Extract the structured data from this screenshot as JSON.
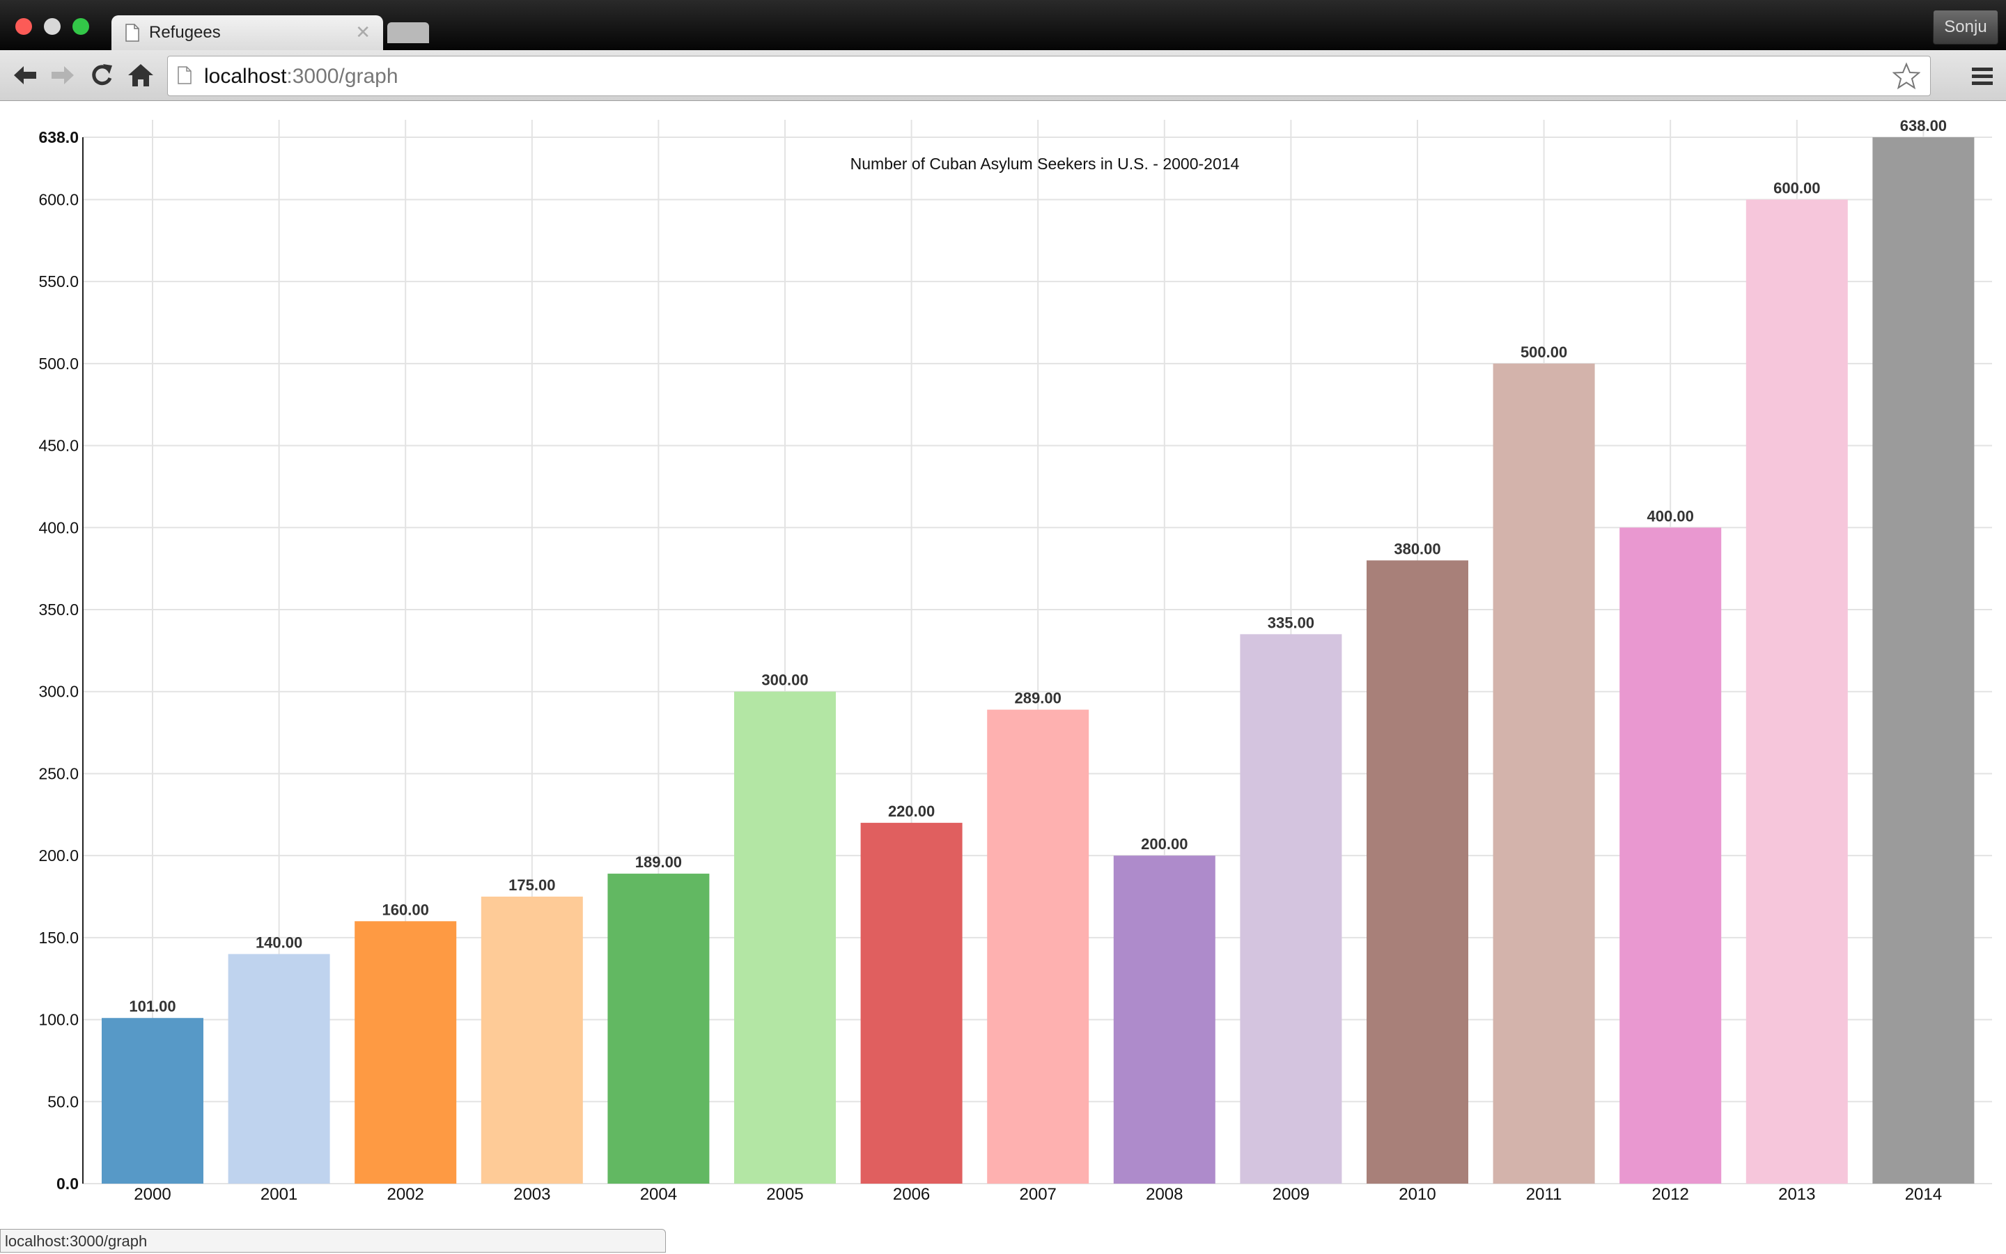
{
  "browser": {
    "tab_title": "Refugees",
    "url_host": "localhost",
    "url_path": ":3000/graph",
    "profile_name": "Sonju",
    "status_text": "localhost:3000/graph"
  },
  "chart_data": {
    "type": "bar",
    "title": "Number of Cuban Asylum Seekers in U.S. - 2000-2014",
    "xlabel": "",
    "ylabel": "",
    "categories": [
      "2000",
      "2001",
      "2002",
      "2003",
      "2004",
      "2005",
      "2006",
      "2007",
      "2008",
      "2009",
      "2010",
      "2011",
      "2012",
      "2013",
      "2014"
    ],
    "values": [
      101,
      140,
      160,
      175,
      189,
      300,
      220,
      289,
      200,
      335,
      380,
      500,
      400,
      600,
      638
    ],
    "value_labels": [
      "101.00",
      "140.00",
      "160.00",
      "175.00",
      "189.00",
      "300.00",
      "220.00",
      "289.00",
      "200.00",
      "335.00",
      "380.00",
      "500.00",
      "400.00",
      "600.00",
      "638.00"
    ],
    "colors": [
      "#5799c7",
      "#bfd3ee",
      "#fe9a43",
      "#fecb97",
      "#62b862",
      "#b3e6a4",
      "#e05f5f",
      "#feb1b0",
      "#ae8bcb",
      "#d4c4df",
      "#a88079",
      "#d3b3ab",
      "#e998d0",
      "#f6c6db",
      "#9b9b9b"
    ],
    "ylim": [
      0,
      638
    ],
    "yticks": [
      0,
      50,
      100,
      150,
      200,
      250,
      300,
      350,
      400,
      450,
      500,
      550,
      600,
      638
    ],
    "ytick_labels": [
      "0.0",
      "50.0",
      "100.0",
      "150.0",
      "200.0",
      "250.0",
      "300.0",
      "350.0",
      "400.0",
      "450.0",
      "500.0",
      "550.0",
      "600.0",
      "638.0"
    ],
    "grid": true,
    "legend": "none"
  }
}
